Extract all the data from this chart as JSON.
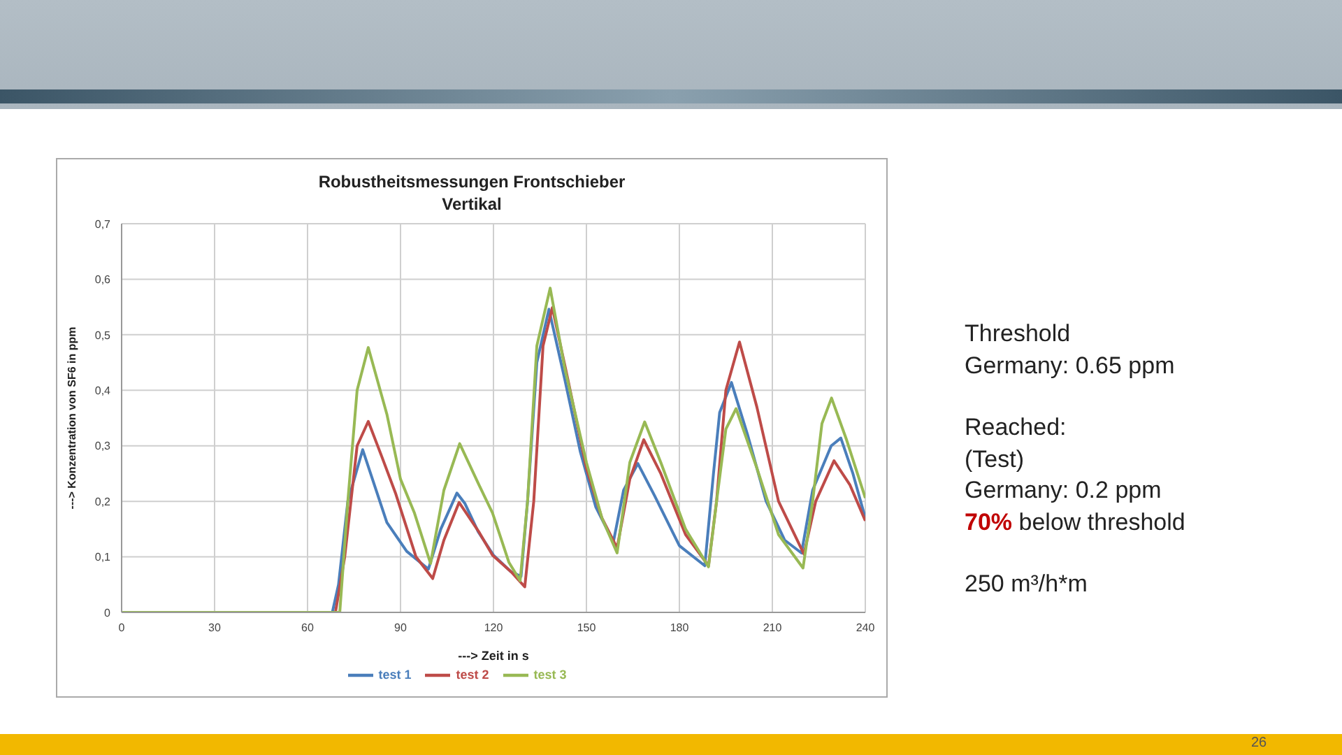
{
  "chart_data": {
    "type": "line",
    "title": "Robustheitsmessungen Frontschieber",
    "subtitle": "Vertikal",
    "xlabel": "---> Zeit in s",
    "ylabel": "---> Konzentration von SF6 in ppm",
    "xlim": [
      0,
      240
    ],
    "xticks": [
      0,
      30,
      60,
      90,
      120,
      150,
      180,
      210,
      240
    ],
    "ylim": [
      0,
      0.7
    ],
    "yticks": [
      {
        "value": 0,
        "label": "0"
      },
      {
        "value": 0.1,
        "label": "0,1"
      },
      {
        "value": 0.2,
        "label": "0,2"
      },
      {
        "value": 0.3,
        "label": "0,3"
      },
      {
        "value": 0.4,
        "label": "0,4"
      },
      {
        "value": 0.5,
        "label": "0,5"
      },
      {
        "value": 0.6,
        "label": "0,6"
      },
      {
        "value": 0.7,
        "label": "0,7"
      }
    ],
    "grid": true,
    "legend": "bottom",
    "marker": "none",
    "line_style": "solid",
    "series": [
      {
        "name": "test 1",
        "color": "#4a7ebb",
        "x": [
          0,
          68,
          70,
          73,
          77.8,
          85.6,
          92,
          99,
          103,
          108.2,
          110.8,
          115.1,
          120,
          125.7,
          128.9,
          131,
          134,
          137.9,
          143,
          148,
          153,
          158.7,
          162,
          166.6,
          172,
          180,
          188.2,
          191,
          193,
          196.8,
          202,
          208,
          214,
          219.4,
          223,
          229,
          232.1,
          236,
          240
        ],
        "values": [
          0,
          0,
          0.05,
          0.2,
          0.293,
          0.162,
          0.11,
          0.078,
          0.15,
          0.215,
          0.196,
          0.145,
          0.103,
          0.073,
          0.065,
          0.2,
          0.45,
          0.546,
          0.42,
          0.29,
          0.19,
          0.127,
          0.22,
          0.268,
          0.21,
          0.12,
          0.084,
          0.25,
          0.36,
          0.414,
          0.32,
          0.2,
          0.13,
          0.107,
          0.22,
          0.3,
          0.314,
          0.25,
          0.17
        ]
      },
      {
        "name": "test 2",
        "color": "#be4b48",
        "x": [
          0,
          69,
          72,
          76,
          79.6,
          84,
          88.5,
          95,
          100.4,
          104,
          108.9,
          115.3,
          119.7,
          125.7,
          130.1,
          133,
          136,
          139,
          144,
          150,
          155,
          159.9,
          164,
          168.5,
          174,
          182,
          189.4,
          192,
          195,
          199.4,
          205,
          212,
          220.2,
          224,
          229.9,
          235,
          240
        ],
        "values": [
          0,
          0,
          0.1,
          0.3,
          0.344,
          0.28,
          0.213,
          0.1,
          0.061,
          0.13,
          0.198,
          0.145,
          0.103,
          0.073,
          0.046,
          0.2,
          0.48,
          0.549,
          0.42,
          0.26,
          0.17,
          0.116,
          0.24,
          0.311,
          0.25,
          0.14,
          0.084,
          0.2,
          0.4,
          0.487,
          0.37,
          0.2,
          0.105,
          0.2,
          0.273,
          0.23,
          0.165
        ]
      },
      {
        "name": "test 3",
        "color": "#98b954",
        "x": [
          0,
          70.4,
          73,
          76,
          79.6,
          85.6,
          90,
          94.5,
          99.7,
          104,
          109.1,
          115.3,
          119.7,
          125,
          128.6,
          131,
          134,
          138.3,
          143,
          150,
          155,
          159.9,
          164,
          168.8,
          174,
          182,
          189.4,
          192,
          195,
          198.3,
          205,
          212,
          219.9,
          223,
          226,
          229.1,
          234,
          240
        ],
        "values": [
          0,
          0,
          0.2,
          0.4,
          0.477,
          0.357,
          0.24,
          0.179,
          0.088,
          0.22,
          0.304,
          0.23,
          0.179,
          0.09,
          0.057,
          0.2,
          0.48,
          0.584,
          0.44,
          0.27,
          0.17,
          0.107,
          0.27,
          0.343,
          0.27,
          0.15,
          0.082,
          0.2,
          0.33,
          0.367,
          0.26,
          0.14,
          0.08,
          0.2,
          0.34,
          0.386,
          0.31,
          0.206
        ]
      }
    ],
    "annotations": [
      "Threshold\nGermany: 0.65 ppm",
      "Reached:\n(Test)\nGermany: 0.2 ppm\n70% below threshold",
      "250 m³/h*m",
      "26"
    ]
  }
}
